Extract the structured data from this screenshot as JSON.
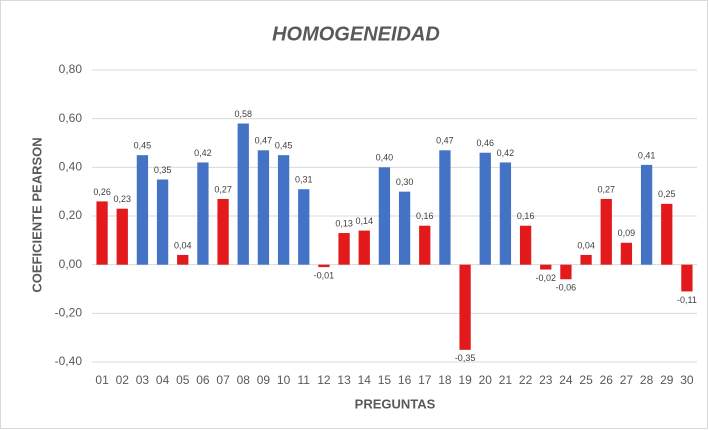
{
  "chart_data": {
    "type": "bar",
    "title": "HOMOGENEIDAD",
    "x_label": "PREGUNTAS",
    "y_label": "COEFICIENTE PEARSON",
    "categories": [
      "01",
      "02",
      "03",
      "04",
      "05",
      "06",
      "07",
      "08",
      "09",
      "10",
      "11",
      "12",
      "13",
      "14",
      "15",
      "16",
      "17",
      "18",
      "19",
      "20",
      "21",
      "22",
      "23",
      "24",
      "25",
      "26",
      "27",
      "28",
      "29",
      "30"
    ],
    "values": [
      0.26,
      0.23,
      0.45,
      0.35,
      0.04,
      0.42,
      0.27,
      0.58,
      0.47,
      0.45,
      0.31,
      -0.01,
      0.13,
      0.14,
      0.4,
      0.3,
      0.16,
      0.47,
      -0.35,
      0.46,
      0.42,
      0.16,
      -0.02,
      -0.06,
      0.04,
      0.27,
      0.09,
      0.41,
      0.25,
      -0.11
    ],
    "value_labels": [
      "0,26",
      "0,23",
      "0,45",
      "0,35",
      "0,04",
      "0,42",
      "0,27",
      "0,58",
      "0,47",
      "0,45",
      "0,31",
      "-0,01",
      "0,13",
      "0,14",
      "0,40",
      "0,30",
      "0,16",
      "0,47",
      "-0,35",
      "0,46",
      "0,42",
      "0,16",
      "-0,02",
      "-0,06",
      "0,04",
      "0,27",
      "0,09",
      "0,41",
      "0,25",
      "-0,11"
    ],
    "colors": [
      "#e31a1c",
      "#e31a1c",
      "#4472c4",
      "#4472c4",
      "#e31a1c",
      "#4472c4",
      "#e31a1c",
      "#4472c4",
      "#4472c4",
      "#4472c4",
      "#4472c4",
      "#e31a1c",
      "#e31a1c",
      "#e31a1c",
      "#4472c4",
      "#4472c4",
      "#e31a1c",
      "#4472c4",
      "#e31a1c",
      "#4472c4",
      "#4472c4",
      "#e31a1c",
      "#e31a1c",
      "#e31a1c",
      "#e31a1c",
      "#e31a1c",
      "#e31a1c",
      "#4472c4",
      "#e31a1c",
      "#e31a1c"
    ],
    "ylim": [
      -0.4,
      0.8
    ],
    "yticks": [
      {
        "value": -0.4,
        "label": "-0,40"
      },
      {
        "value": -0.2,
        "label": "-0,20"
      },
      {
        "value": 0,
        "label": "0,00"
      },
      {
        "value": 0.2,
        "label": "0,20"
      },
      {
        "value": 0.4,
        "label": "0,40"
      },
      {
        "value": 0.6,
        "label": "0,60"
      },
      {
        "value": 0.8,
        "label": "0,80"
      }
    ],
    "grid": true
  }
}
